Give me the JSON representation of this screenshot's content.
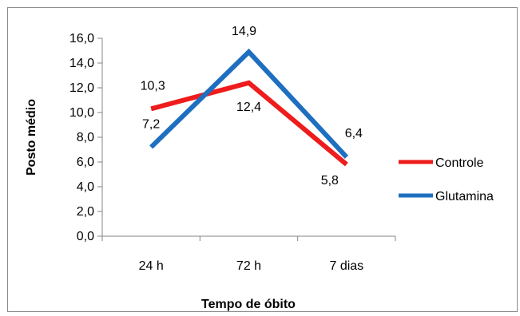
{
  "chart_data": {
    "type": "line",
    "categories": [
      "24 h",
      "72 h",
      "7 dias"
    ],
    "series": [
      {
        "name": "Controle",
        "values": [
          10.3,
          12.4,
          5.8
        ],
        "labels": [
          "10,3",
          "12,4",
          "5,8"
        ],
        "color": "#ee1c1c"
      },
      {
        "name": "Glutamina",
        "values": [
          7.2,
          14.9,
          6.4
        ],
        "labels": [
          "7,2",
          "14,9",
          "6,4"
        ],
        "color": "#1f6fc0"
      }
    ],
    "title": "",
    "xlabel": "Tempo de óbito",
    "ylabel": "Posto médio",
    "ylim": [
      0,
      16
    ],
    "yticks": [
      0,
      2,
      4,
      6,
      8,
      10,
      12,
      14,
      16
    ],
    "ytick_labels": [
      "0,0",
      "2,0",
      "4,0",
      "6,0",
      "8,0",
      "10,0",
      "12,0",
      "14,0",
      "16,0"
    ],
    "grid": false,
    "legend_position": "right"
  }
}
